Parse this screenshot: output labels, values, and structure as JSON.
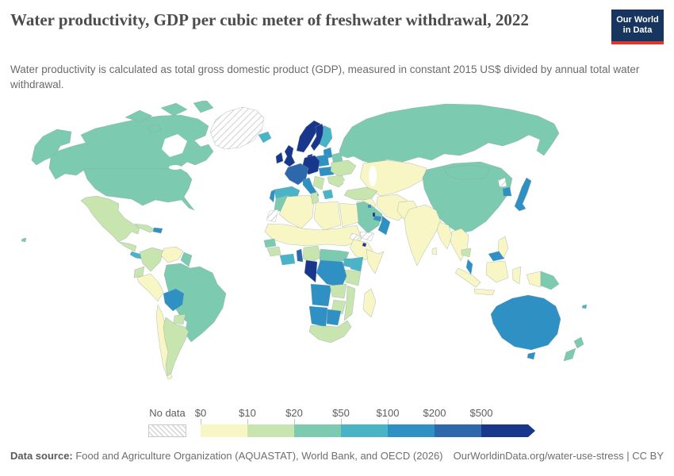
{
  "header": {
    "title": "Water productivity, GDP per cubic meter of freshwater withdrawal, 2022",
    "subtitle": "Water productivity is calculated as total gross domestic product (GDP), measured in constant 2015 US$ divided by annual total water withdrawal."
  },
  "logo": {
    "line1": "Our World",
    "line2": "in Data",
    "bg_color": "#17355e",
    "accent_color": "#e0362c"
  },
  "legend": {
    "no_data_label": "No data",
    "ticks": [
      "$0",
      "$10",
      "$20",
      "$50",
      "$100",
      "$200",
      "$500"
    ],
    "bins": [
      {
        "range": "0-10",
        "color": "#f7f6c4"
      },
      {
        "range": "10-20",
        "color": "#c8e4af"
      },
      {
        "range": "20-50",
        "color": "#7ccab0"
      },
      {
        "range": "50-100",
        "color": "#49b4c6"
      },
      {
        "range": "100-200",
        "color": "#2e90c3"
      },
      {
        "range": "200-500",
        "color": "#2d67ac"
      },
      {
        "range": "500+",
        "color": "#17368c"
      }
    ]
  },
  "footer": {
    "datasource_label": "Data source:",
    "datasource_text": " Food and Agriculture Organization (AQUASTAT), World Bank, and OECD (2026)",
    "link_text": "OurWorldinData.org/water-use-stress | CC BY"
  },
  "chart_data": {
    "type": "heatmap",
    "subtype": "choropleth-world-map",
    "title": "Water productivity, GDP per cubic meter of freshwater withdrawal, 2022",
    "unit": "constant 2015 US$ per cubic meter",
    "legend_position": "bottom",
    "bin_edges_usd": [
      0,
      10,
      20,
      50,
      100,
      200,
      500
    ],
    "regions": {
      "canada": "20-50",
      "united-states": "20-50",
      "alaska": "20-50",
      "hawaii": "20-50",
      "greenland": "no-data",
      "iceland": "50-100",
      "mexico": "10-20",
      "guatemala-honduras": "10-20",
      "costa-rica-panama": "50-100",
      "cuba": "10-20",
      "hispaniola": "100-200",
      "colombia": "10-20",
      "venezuela": "0-10",
      "guianas": "20-50",
      "ecuador": "10-20",
      "peru": "0-10",
      "brazil": "20-50",
      "bolivia": "100-200",
      "paraguay": "10-20",
      "chile": "0-10",
      "argentina": "10-20",
      "ireland": "500+",
      "united-kingdom": "500+",
      "norway": "500+",
      "sweden": "500+",
      "finland": "50-100",
      "denmark": "500+",
      "baltics": "100-200",
      "belarus": "20-50",
      "poland": "100-200",
      "germany-central-europe": "500+",
      "france": "200-500",
      "czech-slovakia-hungary": "100-200",
      "ukraine": "10-20",
      "romania-bulgaria": "10-20",
      "balkans": "10-20",
      "greece": "50-100",
      "italy": "100-200",
      "spain": "50-100",
      "portugal": "100-200",
      "russia": "20-50",
      "kazakhstan-central-asia": "0-10",
      "china": "20-50",
      "mongolia": "20-50",
      "turkey": "10-20",
      "syria-iraq": "0-10",
      "iran": "0-10",
      "saudi-arabia": "20-50",
      "yemen": "no-data",
      "oman": "100-200",
      "uae": "100-200",
      "qatar": "500+",
      "kuwait": "100-200",
      "afghanistan-pakistan": "0-10",
      "india": "0-10",
      "sri-lanka": "0-10",
      "myanmar-bangladesh": "0-10",
      "indochina": "0-10",
      "cambodia": "10-20",
      "north-korea": "no-data",
      "south-korea": "100-200",
      "japan": "100-200",
      "malaysia": "100-200",
      "borneo-malaysia": "100-200",
      "indonesia-sumatra": "0-10",
      "indonesia-java": "0-10",
      "indonesia-borneo": "0-10",
      "indonesia-sulawesi": "0-10",
      "papua-indonesia": "0-10",
      "papua-new-guinea": "20-50",
      "philippines": "0-10",
      "australia": "100-200",
      "tasmania": "100-200",
      "new-zealand-north": "20-50",
      "new-zealand-south": "20-50",
      "fiji": "50-100",
      "morocco": "20-50",
      "western-sahara": "no-data",
      "algeria": "0-10",
      "tunisia": "10-20",
      "libya": "0-10",
      "egypt": "0-10",
      "sahel-sudan": "0-10",
      "senegal": "20-50",
      "guinea": "10-20",
      "ivory-coast-ghana": "50-100",
      "togo-benin": "200-500",
      "nigeria": "10-20",
      "cameroon-car": "20-50",
      "ethiopia": "0-10",
      "eritrea": "no-data",
      "djibouti": "500+",
      "somalia": "0-10",
      "kenya": "50-100",
      "uganda": "50-100",
      "tanzania": "10-20",
      "drc": "100-200",
      "gabon-congo": "500+",
      "angola": "100-200",
      "zambia": "10-20",
      "mozambique": "10-20",
      "zimbabwe": "10-20",
      "namibia": "100-200",
      "botswana": "100-200",
      "south-africa": "10-20",
      "madagascar": "0-10"
    }
  }
}
